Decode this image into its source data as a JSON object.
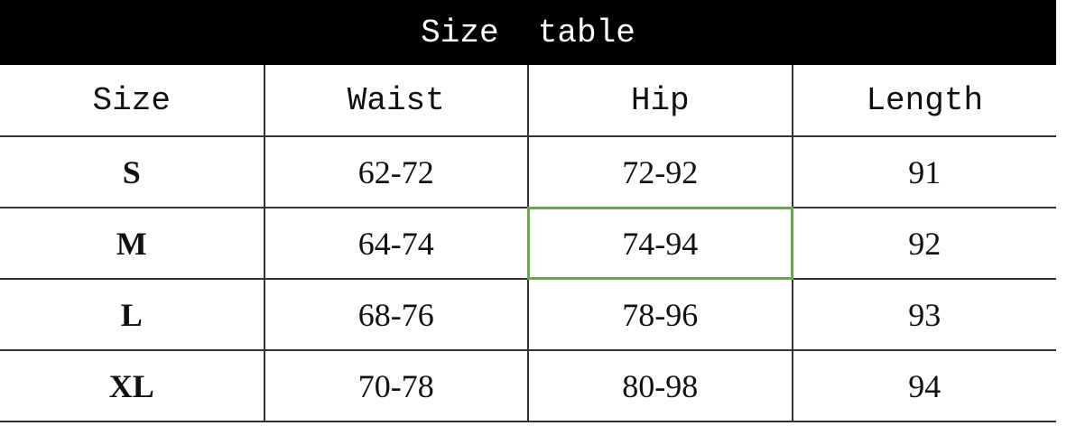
{
  "title": "Size  table",
  "headers": [
    "Size",
    "Waist",
    "Hip",
    "Length"
  ],
  "rows": [
    [
      "S",
      "62-72",
      "72-92",
      "91"
    ],
    [
      "M",
      "64-74",
      "74-94",
      "92"
    ],
    [
      "L",
      "68-76",
      "78-96",
      "93"
    ],
    [
      "XL",
      "70-78",
      "80-98",
      "94"
    ]
  ],
  "selected_cell": {
    "row": 1,
    "col": 2
  },
  "colors": {
    "banner": "#000000",
    "selection": "#6aa84f"
  }
}
